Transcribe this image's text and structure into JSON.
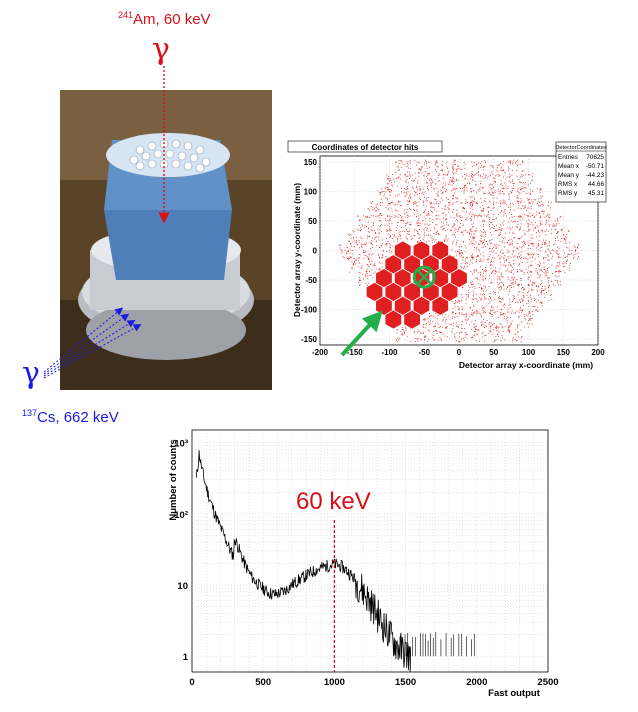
{
  "annotations": {
    "am_source_isotope": "241",
    "am_source_text": "Am, 60 keV",
    "cs_source_isotope": "137",
    "cs_source_text": "Cs, 662 keV",
    "gamma_symbol": "γ",
    "peak_label": "60 keV"
  },
  "colors": {
    "am_red": "#d8101a",
    "cs_blue": "#1a1ae0",
    "hit_red": "#e02020",
    "arrow_green": "#22b04a"
  },
  "chart_data": [
    {
      "type": "scatter",
      "title": "Coordinates of detector hits",
      "xlabel": "Detector array x-coordinate (mm)",
      "ylabel": "Detector array y-coordinate (mm)",
      "xlim": [
        -200,
        200
      ],
      "ylim": [
        -160,
        160
      ],
      "x_ticks": [
        -200,
        -150,
        -100,
        -50,
        0,
        50,
        100,
        150,
        200
      ],
      "y_ticks": [
        -150,
        -100,
        -50,
        0,
        50,
        100,
        150
      ],
      "grid": true,
      "stats_box": {
        "title": "DetectorCoordinates",
        "rows": [
          {
            "label": "Entries",
            "value": "70625"
          },
          {
            "label": "Mean x",
            "value": "-50.71"
          },
          {
            "label": "Mean y",
            "value": "-44.23"
          },
          {
            "label": "RMS x",
            "value": "44.66"
          },
          {
            "label": "RMS y",
            "value": "45.31"
          }
        ]
      }
    },
    {
      "type": "line",
      "xlabel": "Fast output",
      "ylabel": "Number of counts",
      "xlim": [
        0,
        2500
      ],
      "ylim": [
        0.6,
        1500
      ],
      "yscale": "log",
      "x_ticks": [
        0,
        500,
        1000,
        1500,
        2000,
        2500
      ],
      "y_ticks": [
        {
          "value": 1,
          "label": "1"
        },
        {
          "value": 10,
          "label": "10"
        },
        {
          "value": 100,
          "label": "10²"
        },
        {
          "value": 1000,
          "label": "10³"
        }
      ],
      "grid": true,
      "marker_line_x": 1000,
      "points": [
        [
          30,
          300
        ],
        [
          50,
          700
        ],
        [
          70,
          420
        ],
        [
          90,
          280
        ],
        [
          110,
          200
        ],
        [
          130,
          150
        ],
        [
          150,
          115
        ],
        [
          170,
          90
        ],
        [
          190,
          72
        ],
        [
          210,
          58
        ],
        [
          230,
          47
        ],
        [
          250,
          38
        ],
        [
          270,
          30
        ],
        [
          290,
          26
        ],
        [
          300,
          45
        ],
        [
          320,
          36
        ],
        [
          340,
          28
        ],
        [
          360,
          22
        ],
        [
          380,
          18
        ],
        [
          400,
          15
        ],
        [
          420,
          13
        ],
        [
          440,
          11.5
        ],
        [
          460,
          10.5
        ],
        [
          480,
          9.5
        ],
        [
          500,
          9
        ],
        [
          520,
          8.2
        ],
        [
          540,
          7.8
        ],
        [
          560,
          7.5
        ],
        [
          580,
          7.3
        ],
        [
          600,
          7.5
        ],
        [
          620,
          7.8
        ],
        [
          640,
          8
        ],
        [
          660,
          8.6
        ],
        [
          680,
          9.2
        ],
        [
          700,
          10
        ],
        [
          720,
          10.7
        ],
        [
          740,
          11.4
        ],
        [
          760,
          12
        ],
        [
          780,
          12.8
        ],
        [
          800,
          13.5
        ],
        [
          820,
          14.2
        ],
        [
          840,
          15
        ],
        [
          860,
          15.8
        ],
        [
          880,
          16.5
        ],
        [
          900,
          17.2
        ],
        [
          920,
          17.8
        ],
        [
          940,
          18.3
        ],
        [
          960,
          18.8
        ],
        [
          980,
          19.3
        ],
        [
          1000,
          19.5
        ],
        [
          1020,
          19.2
        ],
        [
          1040,
          18.5
        ],
        [
          1060,
          17.5
        ],
        [
          1080,
          16.3
        ],
        [
          1100,
          15
        ],
        [
          1120,
          13.6
        ],
        [
          1140,
          12.2
        ],
        [
          1160,
          10.8
        ],
        [
          1180,
          9.5
        ],
        [
          1200,
          8.3
        ],
        [
          1220,
          7.2
        ],
        [
          1240,
          6.2
        ],
        [
          1260,
          5.3
        ],
        [
          1280,
          4.6
        ],
        [
          1300,
          3.9
        ],
        [
          1320,
          3.3
        ],
        [
          1340,
          2.8
        ],
        [
          1360,
          2.4
        ],
        [
          1380,
          2.1
        ],
        [
          1400,
          1.8
        ],
        [
          1420,
          1.6
        ],
        [
          1440,
          1.4
        ],
        [
          1460,
          1.3
        ],
        [
          1480,
          1.2
        ],
        [
          1500,
          1.1
        ],
        [
          1520,
          1.05
        ],
        [
          1540,
          1
        ]
      ]
    }
  ]
}
